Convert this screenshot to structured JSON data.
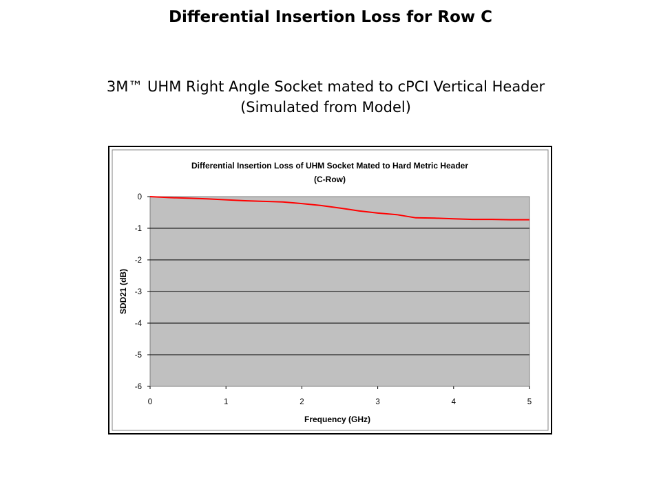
{
  "slide": {
    "title": "Differential Insertion Loss for Row C",
    "subtitle_line1": "3M™ UHM Right Angle Socket mated to cPCI Vertical Header",
    "subtitle_line2": "(Simulated from Model)"
  },
  "colors": {
    "plot_area": "#c0c0c0",
    "series_line": "#ff0000",
    "gridline": "#000000"
  },
  "chart_data": {
    "type": "line",
    "title": "Differential Insertion Loss of UHM Socket Mated to Hard Metric Header",
    "subtitle": "(C-Row)",
    "xlabel": "Frequency (GHz)",
    "ylabel": "SDD21 (dB)",
    "xlim": [
      0,
      5
    ],
    "ylim": [
      -6,
      0
    ],
    "x_ticks": [
      "0",
      "1",
      "2",
      "3",
      "4",
      "5"
    ],
    "y_ticks": [
      "0",
      "-1",
      "-2",
      "-3",
      "-4",
      "-5",
      "-6"
    ],
    "grid": "horizontal",
    "legend": "none",
    "series": [
      {
        "x": [
          0,
          0.25,
          0.5,
          0.75,
          1.0,
          1.25,
          1.5,
          1.75,
          2.0,
          2.25,
          2.5,
          2.75,
          3.0,
          3.25,
          3.5,
          3.75,
          4.0,
          4.25,
          4.5,
          4.75,
          5.0
        ],
        "values": [
          0.0,
          -0.03,
          -0.05,
          -0.07,
          -0.1,
          -0.13,
          -0.15,
          -0.17,
          -0.22,
          -0.28,
          -0.36,
          -0.45,
          -0.52,
          -0.57,
          -0.67,
          -0.68,
          -0.7,
          -0.72,
          -0.72,
          -0.73,
          -0.73
        ]
      }
    ]
  }
}
